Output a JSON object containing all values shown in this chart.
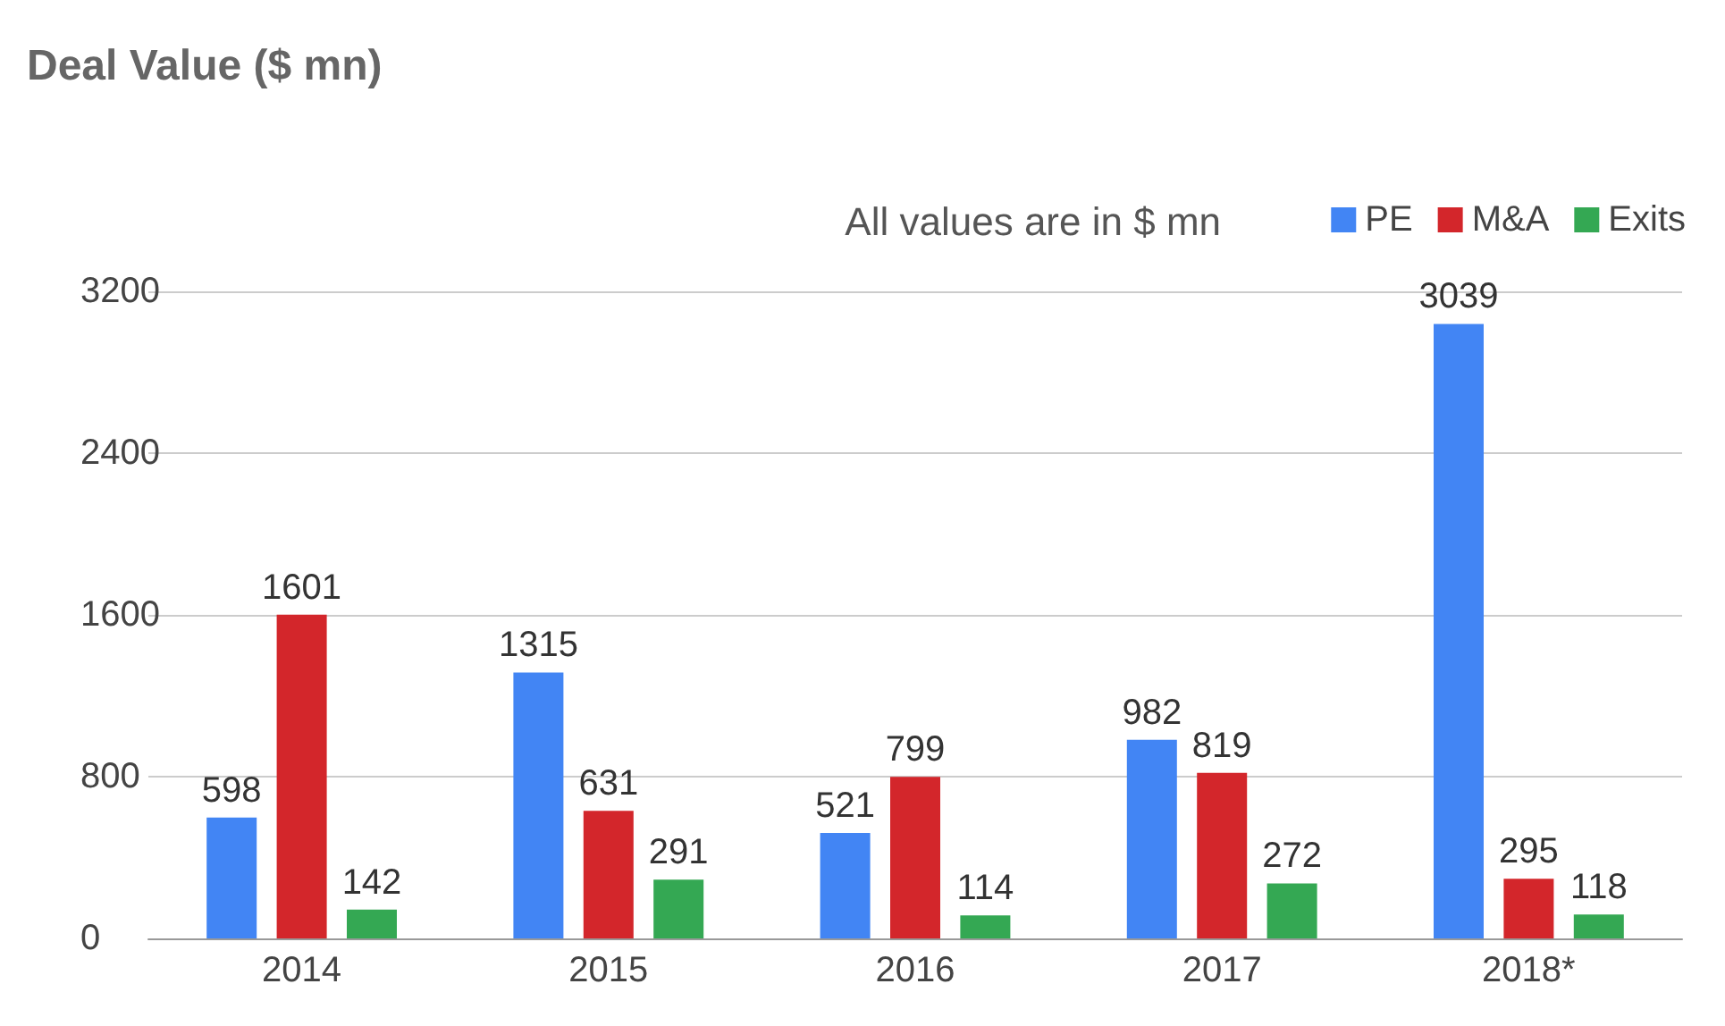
{
  "chart_data": {
    "type": "bar",
    "title": "Deal Value ($ mn)",
    "annotations": [
      "All values are in $ mn"
    ],
    "categories": [
      "2014",
      "2015",
      "2016",
      "2017",
      "2018*"
    ],
    "series": [
      {
        "name": "PE",
        "color": "#4285f4",
        "values": [
          598,
          1315,
          521,
          982,
          3039
        ]
      },
      {
        "name": "M&A",
        "color": "#d3262b",
        "values": [
          1601,
          631,
          799,
          819,
          295
        ]
      },
      {
        "name": "Exits",
        "color": "#34a853",
        "values": [
          142,
          291,
          114,
          272,
          118
        ]
      }
    ],
    "ylim": [
      0,
      3200
    ],
    "yticks": [
      0,
      800,
      1600,
      2400,
      3200
    ],
    "grid": "y",
    "legend": "top right",
    "data_labels": true
  }
}
